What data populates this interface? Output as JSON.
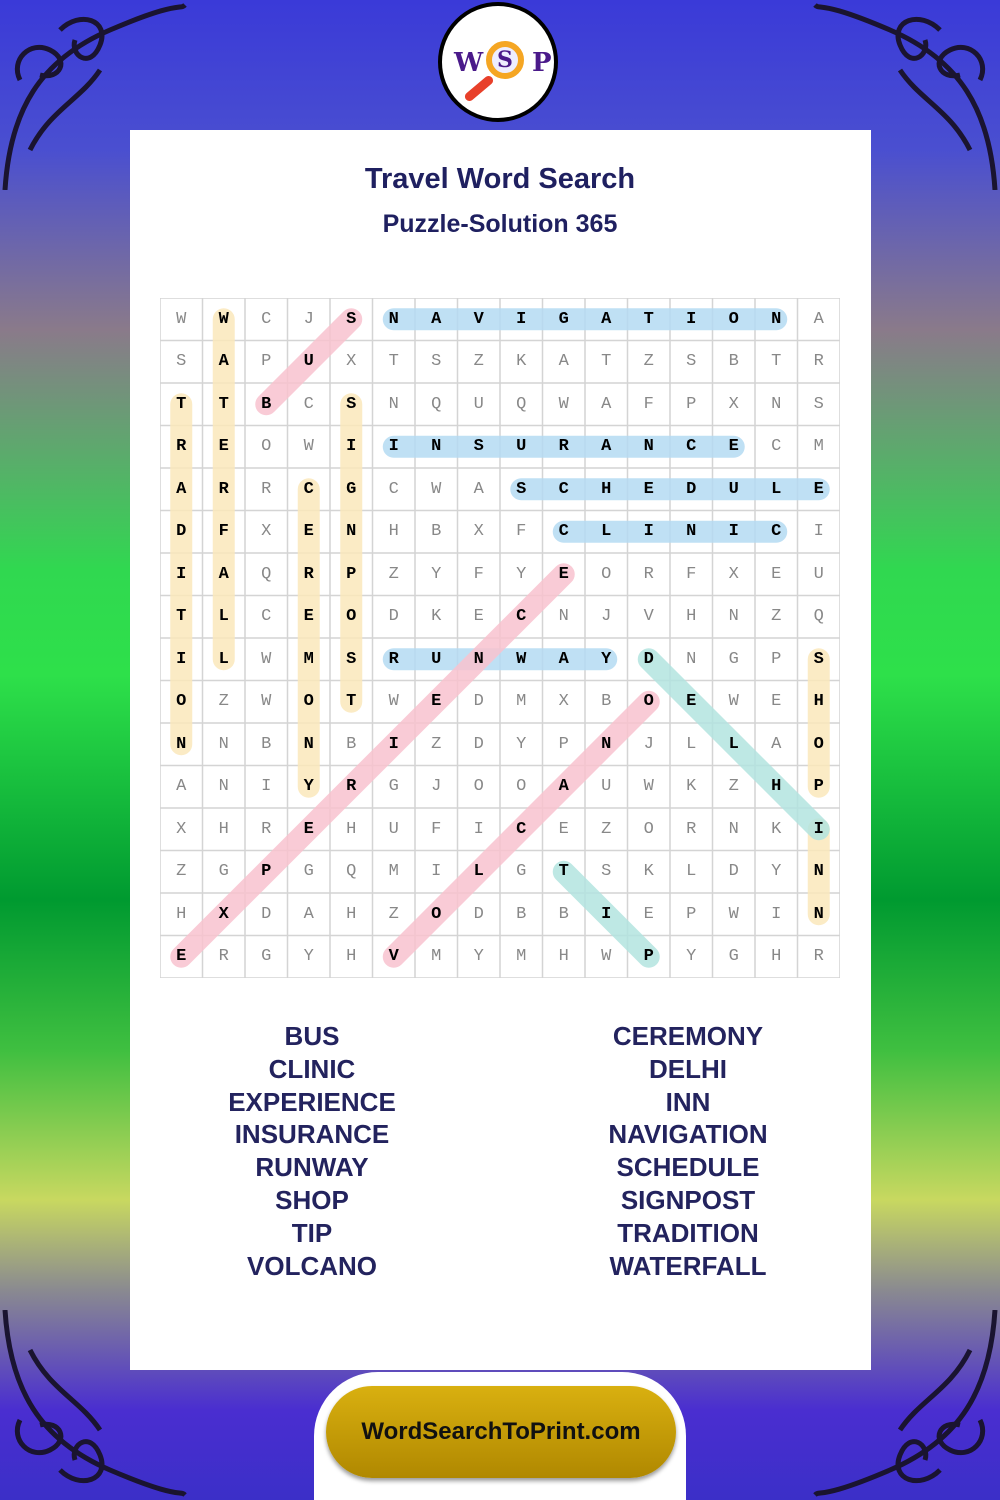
{
  "logo": {
    "letters": [
      "W",
      "S",
      "P"
    ]
  },
  "title": "Travel Word Search",
  "subtitle": "Puzzle-Solution 365",
  "colors": {
    "pink": "#f9c3cf",
    "blue": "#b5dbf3",
    "yellow": "#fbe8bb",
    "teal": "#b3e4e0",
    "text": "#1f2060"
  },
  "grid": [
    "WWCJSNAVIGATIONA",
    "SAPUXTSZKATZSBTR",
    "TTBCSNQUQWAFPXNS",
    "REOWIINSURANCECM",
    "ARRCGCWASCHEDULE",
    "DFXENHBXFCLINICI",
    "IAQRPZYFYEORFXEU",
    "TLCEODKECNJVHNZQ",
    "ILWMSRUNWAYDNGPS",
    "OZWOTWEDMXBOEWEH",
    "NNBNBIZDYPNJLLAO",
    "ANIYRGJOOAUWKZHP",
    "XHREHUFICEZORNKI",
    "ZGPGQMILGTSKLDYN",
    "HXDAHZODBBIEPWIN",
    "ERGYHVMYMHWPYGHR"
  ],
  "solutions": [
    {
      "word": "BUS",
      "from": [
        2,
        2
      ],
      "to": [
        0,
        4
      ],
      "color": "pink"
    },
    {
      "word": "NAVIGATION",
      "from": [
        0,
        5
      ],
      "to": [
        0,
        14
      ],
      "color": "blue"
    },
    {
      "word": "INSURANCE",
      "from": [
        3,
        5
      ],
      "to": [
        3,
        13
      ],
      "color": "blue"
    },
    {
      "word": "SCHEDULE",
      "from": [
        4,
        8
      ],
      "to": [
        4,
        15
      ],
      "color": "blue"
    },
    {
      "word": "CLINIC",
      "from": [
        5,
        9
      ],
      "to": [
        5,
        14
      ],
      "color": "blue"
    },
    {
      "word": "RUNWAY",
      "from": [
        8,
        5
      ],
      "to": [
        8,
        10
      ],
      "color": "blue"
    },
    {
      "word": "TRADITION",
      "from": [
        2,
        0
      ],
      "to": [
        10,
        0
      ],
      "color": "yellow"
    },
    {
      "word": "WATERFALL",
      "from": [
        0,
        1
      ],
      "to": [
        8,
        1
      ],
      "color": "yellow"
    },
    {
      "word": "CEREMONY",
      "from": [
        4,
        3
      ],
      "to": [
        11,
        3
      ],
      "color": "yellow"
    },
    {
      "word": "SIGNPOST",
      "from": [
        2,
        4
      ],
      "to": [
        9,
        4
      ],
      "color": "yellow"
    },
    {
      "word": "SHOP",
      "from": [
        8,
        15
      ],
      "to": [
        11,
        15
      ],
      "color": "yellow"
    },
    {
      "word": "INN",
      "from": [
        12,
        15
      ],
      "to": [
        14,
        15
      ],
      "color": "yellow"
    },
    {
      "word": "EXPERIENCE",
      "from": [
        15,
        0
      ],
      "to": [
        6,
        9
      ],
      "color": "pink"
    },
    {
      "word": "VOLCANO",
      "from": [
        15,
        5
      ],
      "to": [
        9,
        11
      ],
      "color": "pink"
    },
    {
      "word": "DELHI",
      "from": [
        8,
        11
      ],
      "to": [
        12,
        15
      ],
      "color": "teal"
    },
    {
      "word": "TIP",
      "from": [
        13,
        9
      ],
      "to": [
        15,
        11
      ],
      "color": "teal"
    }
  ],
  "word_list": {
    "left": [
      "BUS",
      "CLINIC",
      "EXPERIENCE",
      "INSURANCE",
      "RUNWAY",
      "SHOP",
      "TIP",
      "VOLCANO"
    ],
    "right": [
      "CEREMONY",
      "DELHI",
      "INN",
      "NAVIGATION",
      "SCHEDULE",
      "SIGNPOST",
      "TRADITION",
      "WATERFALL"
    ]
  },
  "footer": "WordSearchToPrint.com"
}
